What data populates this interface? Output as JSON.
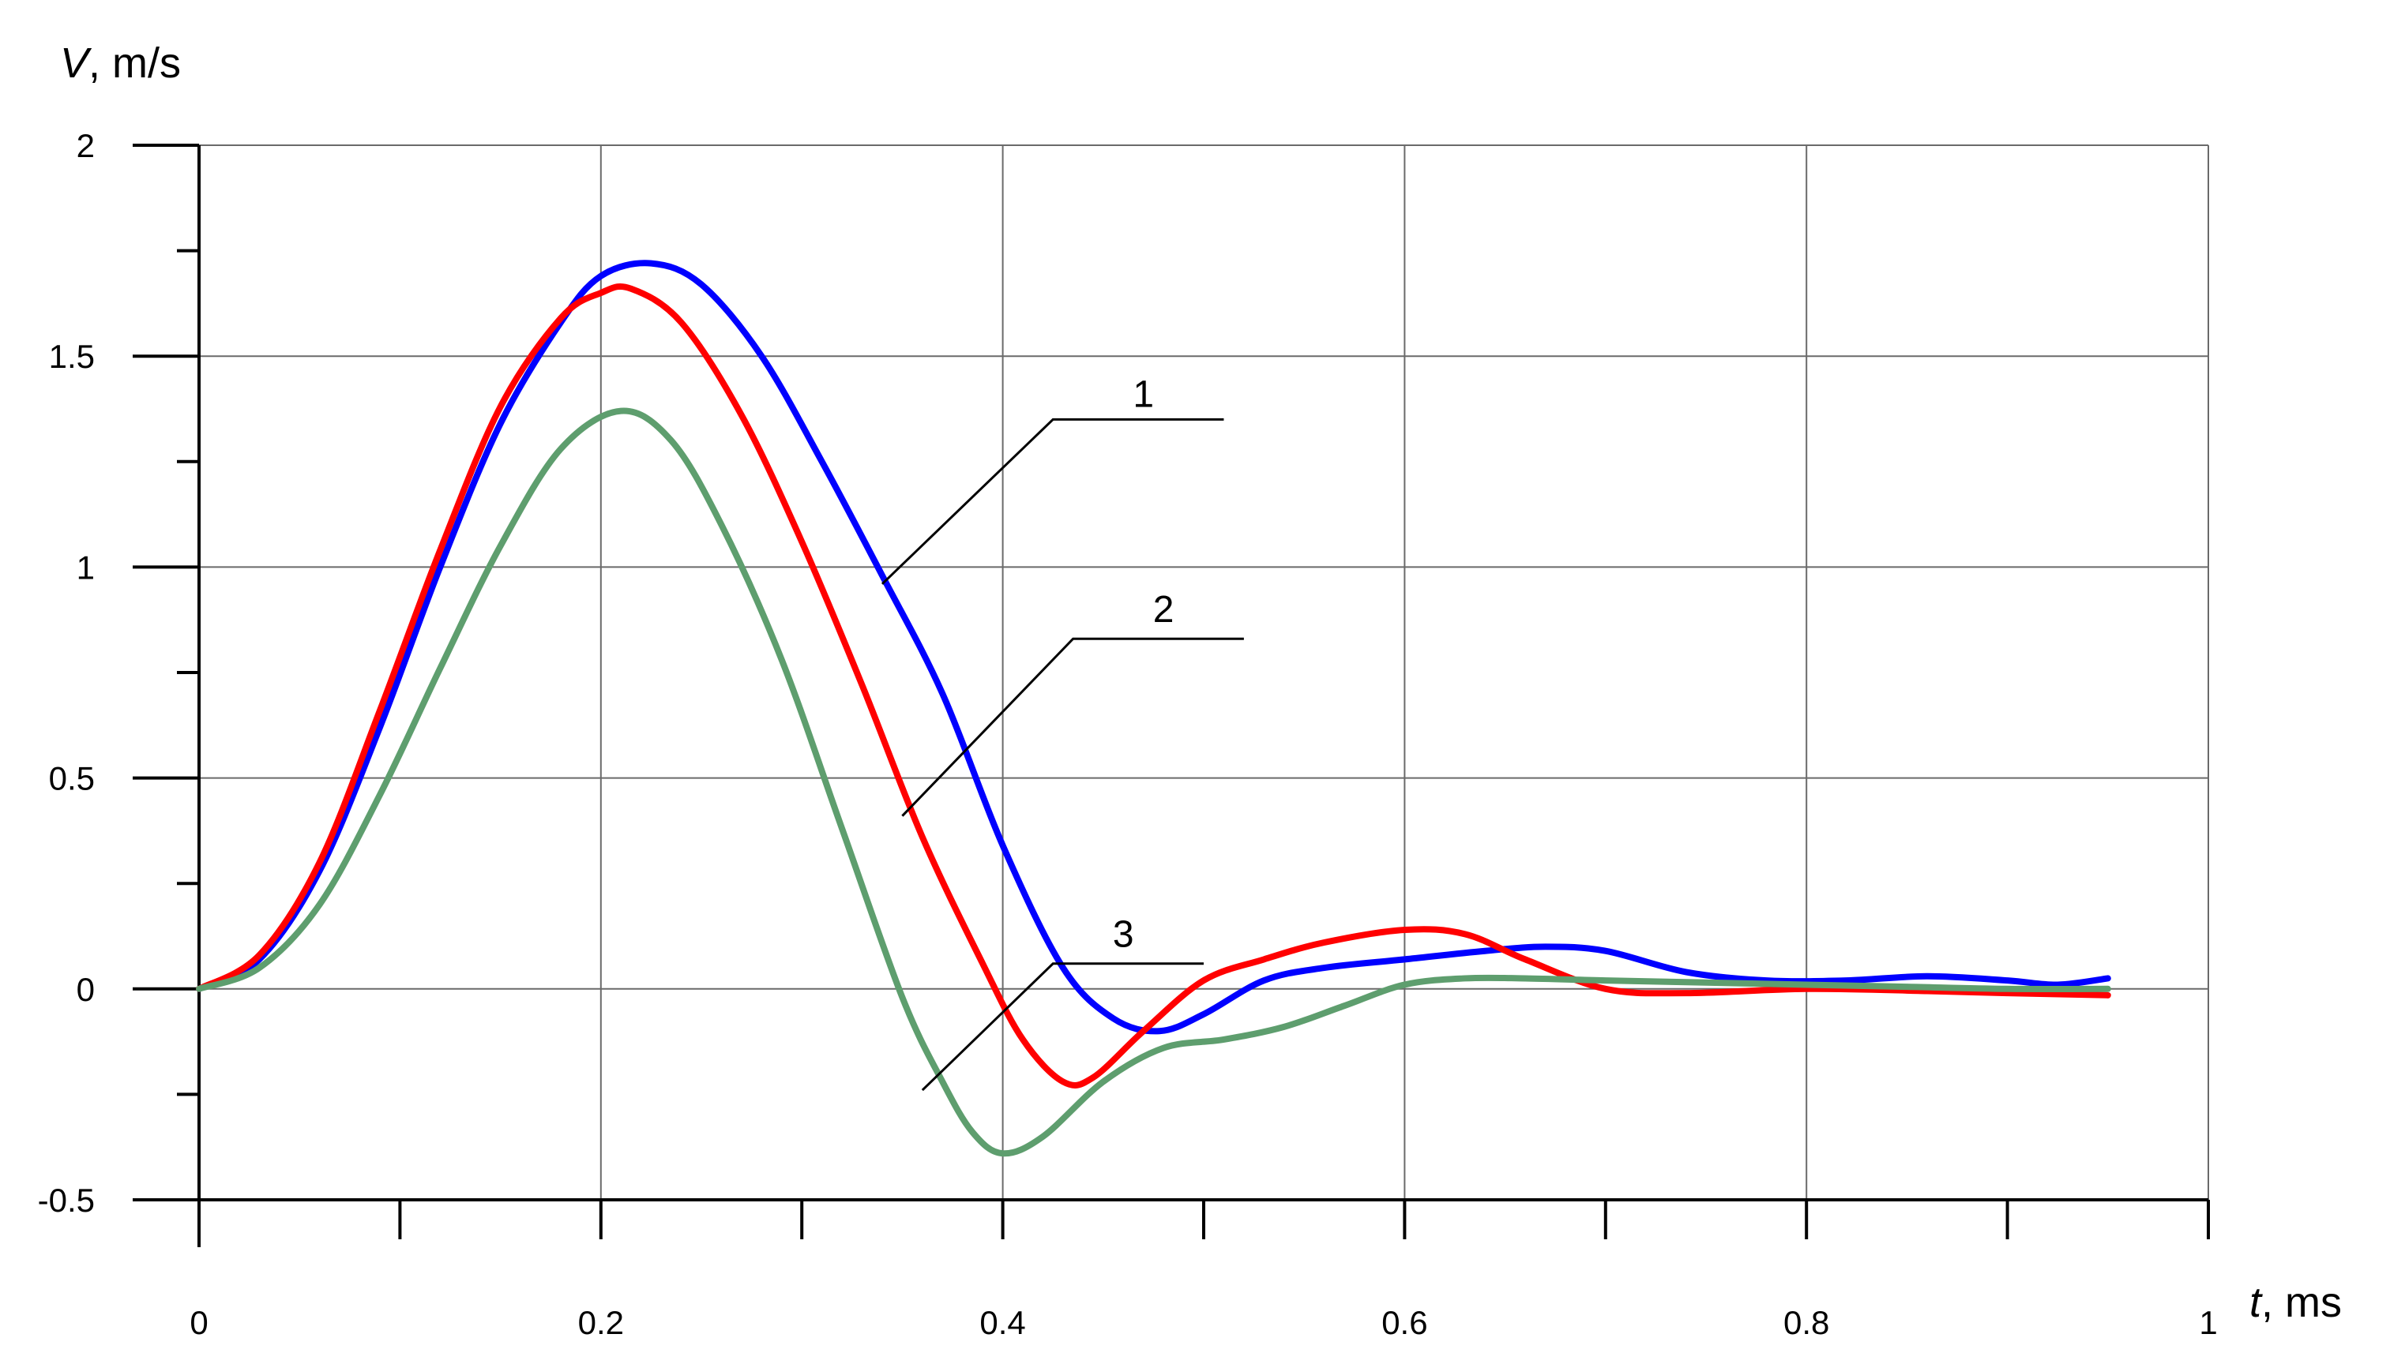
{
  "chart_data": {
    "type": "line",
    "xlabel": {
      "var": "t",
      "unit": ", ms"
    },
    "ylabel": {
      "var": "V",
      "unit": ", m/s"
    },
    "xlim": [
      0,
      1
    ],
    "ylim": [
      -0.5,
      2
    ],
    "x_ticks": [
      "0",
      "0.2",
      "0.4",
      "0.6",
      "0.8",
      "1"
    ],
    "y_ticks": [
      "-0.5",
      "0",
      "0.5",
      "1",
      "1.5",
      "2"
    ],
    "grid": true,
    "series": [
      {
        "name": "1",
        "color": "#0000ff",
        "points": [
          [
            0,
            0
          ],
          [
            0.03,
            0.07
          ],
          [
            0.06,
            0.28
          ],
          [
            0.09,
            0.62
          ],
          [
            0.12,
            1.0
          ],
          [
            0.15,
            1.34
          ],
          [
            0.18,
            1.58
          ],
          [
            0.2,
            1.69
          ],
          [
            0.225,
            1.72
          ],
          [
            0.25,
            1.67
          ],
          [
            0.28,
            1.5
          ],
          [
            0.31,
            1.25
          ],
          [
            0.34,
            0.98
          ],
          [
            0.37,
            0.7
          ],
          [
            0.4,
            0.34
          ],
          [
            0.43,
            0.05
          ],
          [
            0.455,
            -0.07
          ],
          [
            0.478,
            -0.1
          ],
          [
            0.5,
            -0.06
          ],
          [
            0.53,
            0.02
          ],
          [
            0.56,
            0.05
          ],
          [
            0.6,
            0.07
          ],
          [
            0.64,
            0.09
          ],
          [
            0.67,
            0.1
          ],
          [
            0.7,
            0.09
          ],
          [
            0.74,
            0.04
          ],
          [
            0.78,
            0.02
          ],
          [
            0.82,
            0.02
          ],
          [
            0.86,
            0.03
          ],
          [
            0.9,
            0.02
          ],
          [
            0.925,
            0.01
          ],
          [
            0.95,
            0.025
          ]
        ]
      },
      {
        "name": "2",
        "color": "#ff0000",
        "points": [
          [
            0,
            0
          ],
          [
            0.03,
            0.08
          ],
          [
            0.06,
            0.3
          ],
          [
            0.09,
            0.66
          ],
          [
            0.12,
            1.04
          ],
          [
            0.15,
            1.38
          ],
          [
            0.18,
            1.59
          ],
          [
            0.2,
            1.65
          ],
          [
            0.215,
            1.66
          ],
          [
            0.24,
            1.58
          ],
          [
            0.27,
            1.36
          ],
          [
            0.3,
            1.06
          ],
          [
            0.33,
            0.72
          ],
          [
            0.36,
            0.36
          ],
          [
            0.39,
            0.06
          ],
          [
            0.41,
            -0.12
          ],
          [
            0.43,
            -0.22
          ],
          [
            0.445,
            -0.21
          ],
          [
            0.47,
            -0.1
          ],
          [
            0.5,
            0.02
          ],
          [
            0.53,
            0.07
          ],
          [
            0.56,
            0.11
          ],
          [
            0.6,
            0.14
          ],
          [
            0.63,
            0.13
          ],
          [
            0.66,
            0.07
          ],
          [
            0.7,
            0.0
          ],
          [
            0.74,
            -0.01
          ],
          [
            0.8,
            0.0
          ],
          [
            0.86,
            -0.005
          ],
          [
            0.9,
            -0.01
          ],
          [
            0.95,
            -0.015
          ]
        ]
      },
      {
        "name": "3",
        "color": "#5e9e6e",
        "points": [
          [
            0,
            0
          ],
          [
            0.03,
            0.05
          ],
          [
            0.06,
            0.2
          ],
          [
            0.09,
            0.46
          ],
          [
            0.12,
            0.76
          ],
          [
            0.15,
            1.05
          ],
          [
            0.18,
            1.28
          ],
          [
            0.21,
            1.37
          ],
          [
            0.235,
            1.3
          ],
          [
            0.26,
            1.1
          ],
          [
            0.29,
            0.78
          ],
          [
            0.32,
            0.38
          ],
          [
            0.35,
            -0.02
          ],
          [
            0.37,
            -0.22
          ],
          [
            0.385,
            -0.34
          ],
          [
            0.4,
            -0.39
          ],
          [
            0.42,
            -0.35
          ],
          [
            0.45,
            -0.22
          ],
          [
            0.48,
            -0.14
          ],
          [
            0.51,
            -0.12
          ],
          [
            0.54,
            -0.09
          ],
          [
            0.57,
            -0.04
          ],
          [
            0.6,
            0.01
          ],
          [
            0.63,
            0.025
          ],
          [
            0.66,
            0.025
          ],
          [
            0.7,
            0.02
          ],
          [
            0.75,
            0.015
          ],
          [
            0.8,
            0.01
          ],
          [
            0.85,
            0.005
          ],
          [
            0.9,
            0.0
          ],
          [
            0.95,
            0.0
          ]
        ]
      }
    ],
    "annotations": [
      {
        "label": "1",
        "leader": [
          [
            0.34,
            0.96
          ],
          [
            0.425,
            1.35
          ],
          [
            0.51,
            1.35
          ]
        ],
        "text_at": [
          0.47,
          1.38
        ]
      },
      {
        "label": "2",
        "leader": [
          [
            0.35,
            0.41
          ],
          [
            0.435,
            0.83
          ],
          [
            0.52,
            0.83
          ]
        ],
        "text_at": [
          0.48,
          0.87
        ]
      },
      {
        "label": "3",
        "leader": [
          [
            0.36,
            -0.24
          ],
          [
            0.425,
            0.06
          ],
          [
            0.5,
            0.06
          ]
        ],
        "text_at": [
          0.46,
          0.1
        ]
      }
    ]
  }
}
